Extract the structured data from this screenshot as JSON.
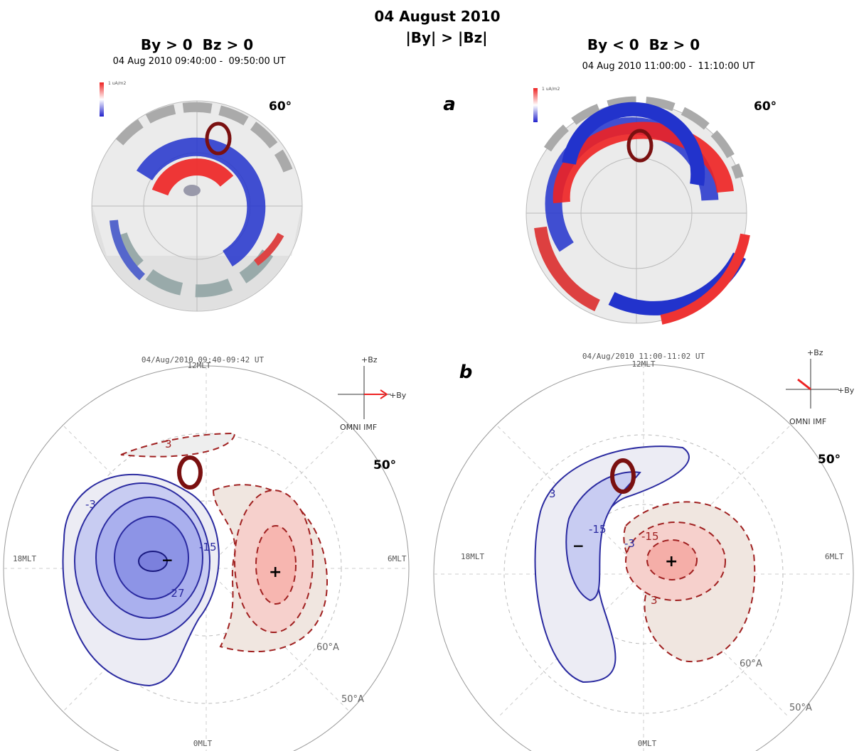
{
  "header": {
    "title": "04 August 2010",
    "subtitle": "|By| > |Bz|"
  },
  "panel_labels": {
    "a": "a",
    "b": "b"
  },
  "top_panels": [
    {
      "title": "By > 0  Bz > 0",
      "time": "04 Aug 2010 09:40:00 -  09:50:00 UT",
      "colorbar_label": "1 uA/m2",
      "latitude": "60°"
    },
    {
      "title": "By < 0  Bz > 0",
      "time": "04 Aug 2010 11:00:00 -  11:10:00 UT",
      "colorbar_label": "1 uA/m2",
      "latitude": "60°"
    }
  ],
  "bottom_panels": [
    {
      "time": "04/Aug/2010 09:40-09:42 UT",
      "mlt_noon": "12MLT",
      "mlt_dusk": "18MLT",
      "mlt_dawn": "6MLT",
      "mlt_midnight": "0MLT",
      "lat_50": "50°",
      "lat_60a": "60°A",
      "lat_50a": "50°A",
      "imf_bz": "+Bz",
      "imf_by": "+By",
      "imf_source": "OMNI IMF",
      "contours": [
        "-3",
        "-15",
        "-27",
        "3"
      ],
      "sign_minus": "−",
      "sign_plus": "+"
    },
    {
      "time": "04/Aug/2010 11:00-11:02 UT",
      "mlt_noon": "12MLT",
      "mlt_dusk": "18MLT",
      "mlt_dawn": "6MLT",
      "mlt_midnight": "0MLT",
      "lat_50": "50°",
      "lat_60a": "60°A",
      "lat_50a": "50°A",
      "imf_bz": "+Bz",
      "imf_by": "+By",
      "imf_source": "OMNI IMF",
      "contours": [
        "3",
        "-15",
        "-3",
        "-15",
        "3"
      ],
      "sign_minus": "−",
      "sign_plus": "+"
    }
  ]
}
